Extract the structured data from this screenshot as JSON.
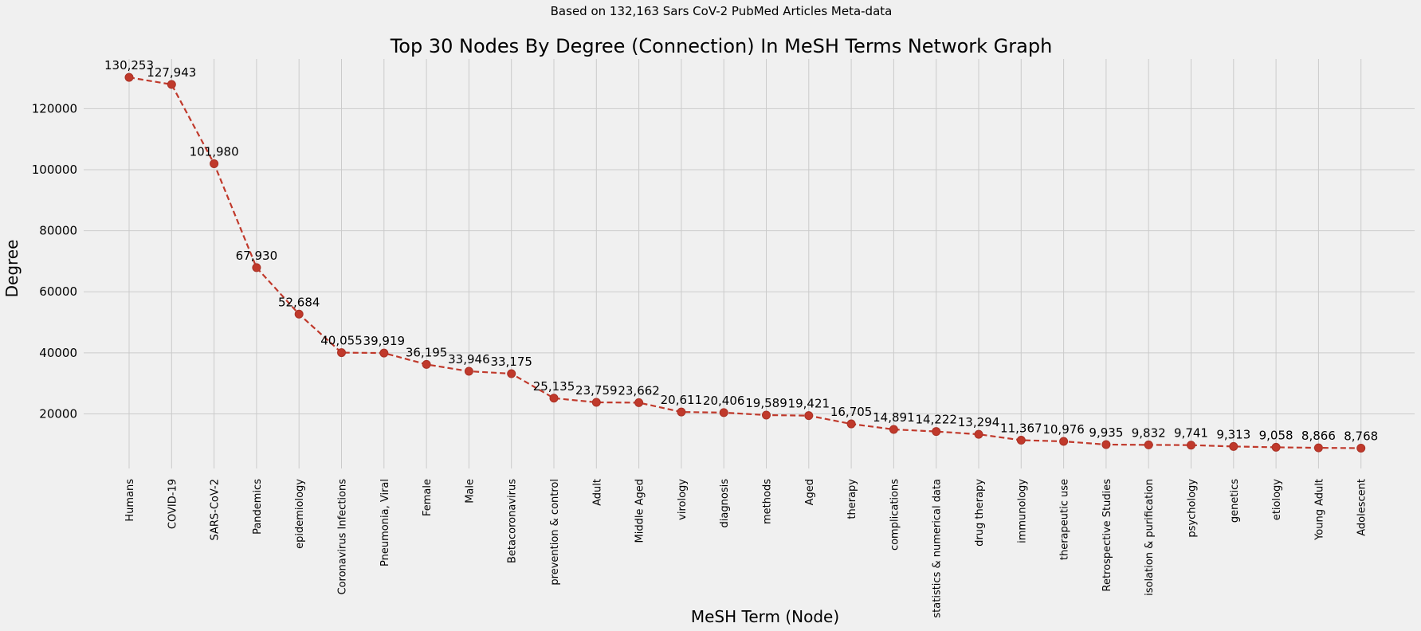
{
  "chart_data": {
    "type": "line",
    "suptitle": "Based on 132,163 Sars CoV-2 PubMed Articles Meta-data",
    "title": "Top 30 Nodes By Degree (Connection) In MeSH Terms Network Graph",
    "xlabel": "MeSH Term (Node)",
    "ylabel": "Degree",
    "categories": [
      "Humans",
      "COVID-19",
      "SARS-CoV-2",
      "Pandemics",
      "epidemiology",
      "Coronavirus Infections",
      "Pneumonia, Viral",
      "Female",
      "Male",
      "Betacoronavirus",
      "prevention & control",
      "Adult",
      "Middle Aged",
      "virology",
      "diagnosis",
      "methods",
      "Aged",
      "therapy",
      "complications",
      "statistics & numerical data",
      "drug therapy",
      "immunology",
      "therapeutic use",
      "Retrospective Studies",
      "isolation & purification",
      "psychology",
      "genetics",
      "etiology",
      "Young Adult",
      "Adolescent"
    ],
    "values": [
      130253,
      127943,
      101980,
      67930,
      52684,
      40055,
      39919,
      36195,
      33946,
      33175,
      25135,
      23759,
      23662,
      20611,
      20406,
      19589,
      19421,
      16705,
      14891,
      14222,
      13294,
      11367,
      10976,
      9935,
      9832,
      9741,
      9313,
      9058,
      8866,
      8768
    ],
    "value_labels": [
      "130,253",
      "127,943",
      "101,980",
      "67,930",
      "52,684",
      "40,055",
      "39,919",
      "36,195",
      "33,946",
      "33,175",
      "25,135",
      "23,759",
      "23,662",
      "20,611",
      "20,406",
      "19,589",
      "19,421",
      "16,705",
      "14,891",
      "14,222",
      "13,294",
      "11,367",
      "10,976",
      "9,935",
      "9,832",
      "9,741",
      "9,313",
      "9,058",
      "8,866",
      "8,768"
    ],
    "yticks": [
      20000,
      40000,
      60000,
      80000,
      100000,
      120000
    ],
    "ytick_labels": [
      "20000",
      "40000",
      "60000",
      "80000",
      "100000",
      "120000"
    ],
    "ylim": [
      2100,
      136300
    ],
    "grid": true,
    "line_style": "dashed",
    "marker": "circle",
    "color": "#c0392b",
    "background": "#f0f0f0"
  }
}
